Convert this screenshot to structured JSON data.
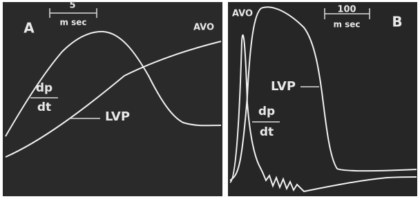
{
  "panels": [
    {
      "label": "A",
      "scale": {
        "value": "5",
        "unit": "m sec"
      },
      "avo": "AVO",
      "dp": "dp",
      "dt": "dt",
      "lvp": "LVP"
    },
    {
      "label": "B",
      "scale": {
        "value": "100",
        "unit": "m sec"
      },
      "avo": "AVO",
      "dp": "dp",
      "dt": "dt",
      "lvp": "LVP"
    }
  ]
}
